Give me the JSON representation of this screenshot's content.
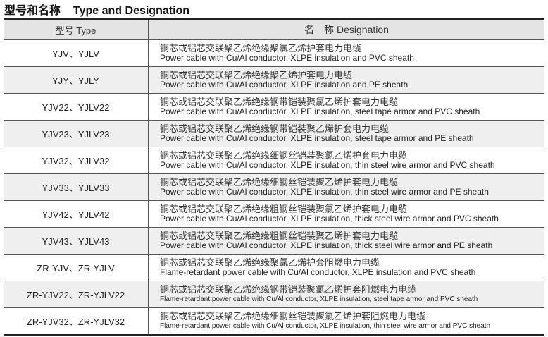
{
  "title": {
    "zh": "型号和名称",
    "en": "Type and Designation"
  },
  "headers": {
    "type": "型号 Type",
    "designation": "名　称 Designation"
  },
  "rows": [
    {
      "type": "YJV、YJLV",
      "zh": "铜芯或铝芯交联聚乙烯绝缘聚氯乙烯护套电力电缆",
      "en": "Power cable with Cu/Al conductor, XLPE insulation and PVC sheath"
    },
    {
      "type": "YJY、YJLY",
      "zh": "铜芯或铝芯交联聚乙烯绝缘聚乙烯护套电力电缆",
      "en": "Power cable with Cu/Al conductor, XLPE insulation and PE sheath"
    },
    {
      "type": "YJV22、YJLV22",
      "zh": "铜芯或铝芯交联聚乙烯绝缘钢带铠装聚氯乙烯护套电力电缆",
      "en": "Power cable with Cu/Al conductor, XLPE insulation, steel tape armor and PVC sheath"
    },
    {
      "type": "YJV23、YJLV23",
      "zh": "铜芯或铝芯交联聚乙烯绝缘钢带铠装聚乙烯护套电力电缆",
      "en": "Power cable with Cu/Al conductor, XLPE insulation, steel tape armor and PE sheath"
    },
    {
      "type": "YJV32、YJLV32",
      "zh": "铜芯或铝芯交联聚乙烯绝缘细钢丝铠装聚氯乙烯护套电力电缆",
      "en": "Power cable with Cu/Al conductor, XLPE insulation, thin steel wire armor and PVC sheath"
    },
    {
      "type": "YJV33、YJLV33",
      "zh": "铜芯或铝芯交联聚乙烯绝缘细钢丝铠装聚乙烯护套电力电缆",
      "en": "Power cable with Cu/Al conductor, XLPE insulation, thin steel wire armor and PE sheath"
    },
    {
      "type": "YJV42、YJLV42",
      "zh": "铜芯或铝芯交联聚乙烯绝缘粗钢丝铠装聚氯乙烯护套电力电缆",
      "en": "Power cable with Cu/Al conductor, XLPE insulation, thick steel wire armor and PVC sheath"
    },
    {
      "type": "YJV43、YJLV43",
      "zh": "铜芯或铝芯交联聚乙烯绝缘粗钢丝铠装聚乙烯护套电力电缆",
      "en": "Power cable with Cu/Al conductor, XLPE insulation, thick steel wire armor and PE sheath"
    },
    {
      "type": "ZR-YJV、ZR-YJLV",
      "zh": "铜芯或铝芯交联聚乙烯绝缘聚氯乙烯护套阻燃电力电缆",
      "en": "Flame-retardant power cable with Cu/Al conductor, XLPE insulation and PVC sheath"
    },
    {
      "type": "ZR-YJV22、ZR-YJLV22",
      "zh": "铜芯或铝芯交联聚乙烯绝缘钢带铠装聚氯乙烯护套阻燃电力电缆",
      "en": "Flame-retardant power cable with Cu/Al conductor, XLPE insulation, steel tape armor and PVC sheath"
    },
    {
      "type": "ZR-YJV32、ZR-YJLV32",
      "zh": "铜芯或铝芯交联聚乙烯绝缘细钢丝铠装聚氯乙烯护套阻燃电力电缆",
      "en": "Flame-retardant power cable with Cu/Al conductor, XLPE insulation, thin steel wire armor and PVC sheath"
    }
  ]
}
